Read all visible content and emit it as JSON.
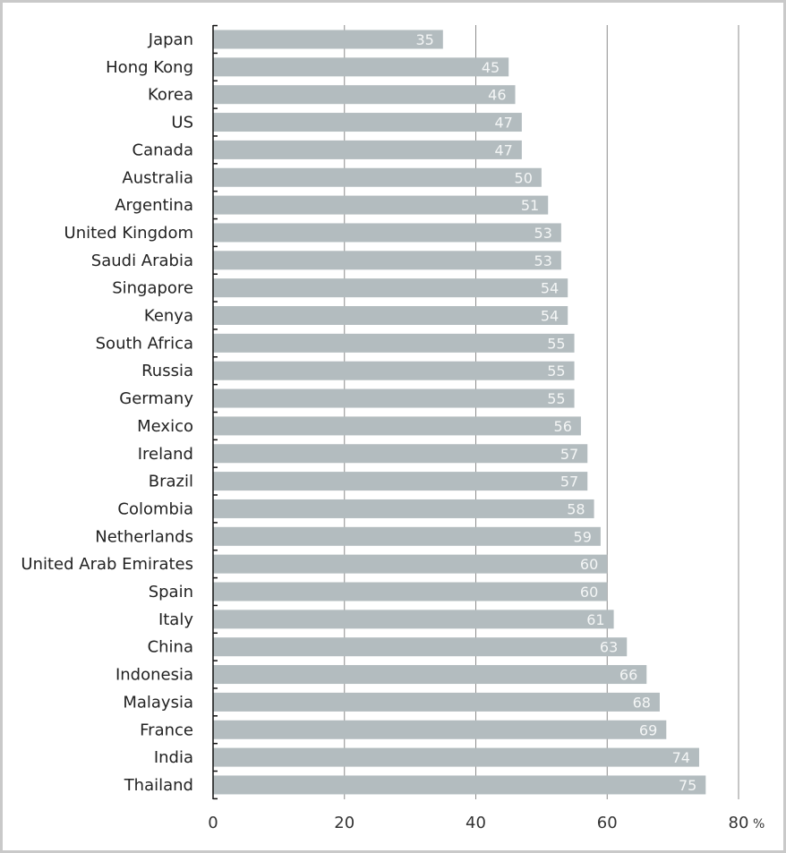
{
  "chart_data": {
    "type": "bar",
    "orientation": "horizontal",
    "categories": [
      "Japan",
      "Hong Kong",
      "Korea",
      "US",
      "Canada",
      "Australia",
      "Argentina",
      "United Kingdom",
      "Saudi Arabia",
      "Singapore",
      "Kenya",
      "South Africa",
      "Russia",
      "Germany",
      "Mexico",
      "Ireland",
      "Brazil",
      "Colombia",
      "Netherlands",
      "United Arab Emirates",
      "Spain",
      "Italy",
      "China",
      "Indonesia",
      "Malaysia",
      "France",
      "India",
      "Thailand"
    ],
    "values": [
      35,
      45,
      46,
      47,
      47,
      50,
      51,
      53,
      53,
      54,
      54,
      55,
      55,
      55,
      56,
      57,
      57,
      58,
      59,
      60,
      60,
      61,
      63,
      66,
      68,
      69,
      74,
      75
    ],
    "xlim": [
      0,
      80
    ],
    "xticks": [
      "0",
      "20",
      "40",
      "60",
      "80"
    ],
    "x_unit": "%",
    "grid": true,
    "colors": {
      "bar": "#b3bcbf",
      "grid": "#8c8c8c",
      "axis": "#111111",
      "frame": "#c9c9c9"
    }
  }
}
